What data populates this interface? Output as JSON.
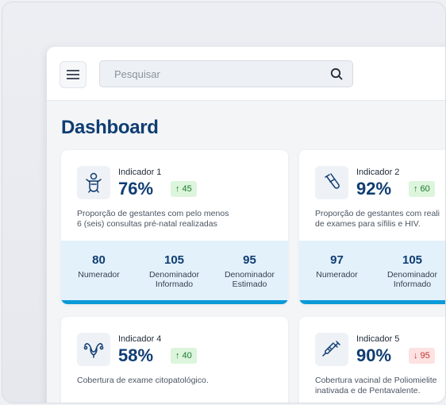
{
  "search": {
    "placeholder": "Pesquisar"
  },
  "page": {
    "title": "Dashboard"
  },
  "colors": {
    "primary": "#0f3d72",
    "accent": "#0b9ad8",
    "positive": "#1c7a2c",
    "negative": "#c53030"
  },
  "cards": [
    {
      "label": "Indicador 1",
      "value": "76%",
      "icon": "baby-icon",
      "trend": {
        "direction": "up",
        "value": "45"
      },
      "description": "Proporção de gestantes com pelo menos\n6 (seis) consultas pré-natal realizadas",
      "stats": [
        {
          "value": "80",
          "label": "Numerador"
        },
        {
          "value": "105",
          "label": "Denominador\nInformado"
        },
        {
          "value": "95",
          "label": "Denominador\nEstimado"
        }
      ]
    },
    {
      "label": "Indicador 2",
      "value": "92%",
      "icon": "test-tube-icon",
      "trend": {
        "direction": "up",
        "value": "60"
      },
      "description": "Proporção de gestantes com reali\nde exames para sífilis e HIV.",
      "stats": [
        {
          "value": "97",
          "label": "Numerador"
        },
        {
          "value": "105",
          "label": "Denominador\nInformado"
        }
      ]
    },
    {
      "label": "Indicador 4",
      "value": "58%",
      "icon": "uterus-icon",
      "trend": {
        "direction": "up",
        "value": "40"
      },
      "description": "Cobertura de exame citopatológico."
    },
    {
      "label": "Indicador 5",
      "value": "90%",
      "icon": "syringe-icon",
      "trend": {
        "direction": "down",
        "value": "95"
      },
      "description": "Cobertura vacinal de Poliomielite\ninativada e de Pentavalente."
    }
  ]
}
